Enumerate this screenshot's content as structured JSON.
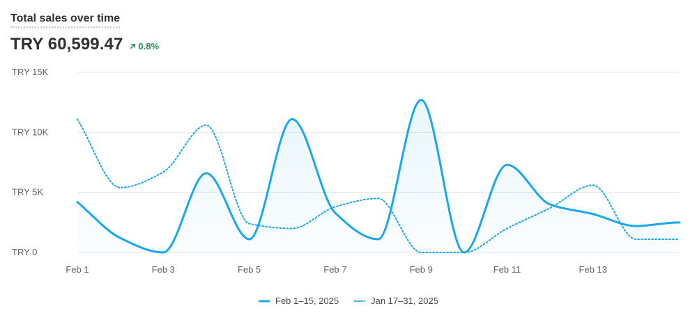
{
  "header": {
    "title": "Total sales over time",
    "total": "TRY 60,599.47",
    "change": "0.8%"
  },
  "colors": {
    "series": "#1aa7ec",
    "grid": "#e6e6e6",
    "text": "#303030",
    "positive": "#2e8b57"
  },
  "icons": {
    "change": "arrow-up-right-icon"
  },
  "chart_data": {
    "type": "line",
    "x": [
      "Feb 1",
      "Feb 2",
      "Feb 3",
      "Feb 4",
      "Feb 5",
      "Feb 6",
      "Feb 7",
      "Feb 8",
      "Feb 9",
      "Feb 10",
      "Feb 11",
      "Feb 12",
      "Feb 13",
      "Feb 14",
      "Feb 15"
    ],
    "xticks": [
      "Feb 1",
      "Feb 3",
      "Feb 5",
      "Feb 7",
      "Feb 9",
      "Feb 11",
      "Feb 13"
    ],
    "yticks": [
      "TRY 0",
      "TRY 5K",
      "TRY 10K",
      "TRY 15K"
    ],
    "ylim": [
      0,
      15000
    ],
    "grid": true,
    "legend_position": "bottom-center",
    "series": [
      {
        "name": "Feb 1–15, 2025",
        "style": "solid",
        "fill": true,
        "values": [
          4200,
          1200,
          0,
          6600,
          1100,
          11100,
          3300,
          1100,
          12700,
          0,
          7300,
          4000,
          3200,
          2200,
          2500
        ]
      },
      {
        "name": "Jan 17–31, 2025",
        "style": "dotted",
        "fill": false,
        "values": [
          11100,
          5400,
          6700,
          10600,
          2400,
          2000,
          3800,
          4500,
          0,
          0,
          2000,
          3700,
          5600,
          1100,
          1100
        ]
      }
    ]
  }
}
